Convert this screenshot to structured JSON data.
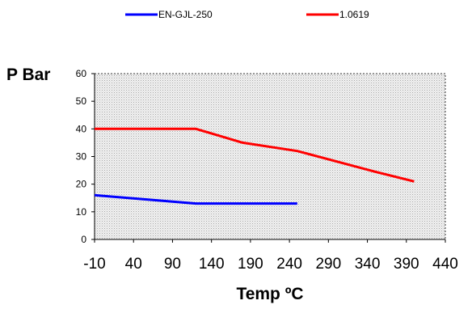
{
  "chart_data": {
    "type": "line",
    "xlabel": "Temp ºC",
    "ylabel": "P Bar",
    "xlim": [
      -10,
      440
    ],
    "ylim": [
      0,
      60
    ],
    "x_ticks": [
      -10,
      40,
      90,
      140,
      190,
      240,
      290,
      340,
      390,
      440
    ],
    "y_ticks": [
      0,
      10,
      20,
      30,
      40,
      50,
      60
    ],
    "grid": false,
    "legend_position": "top",
    "series": [
      {
        "name": "EN-GJL-250",
        "color": "#0000ff",
        "points": [
          [
            -10,
            16
          ],
          [
            120,
            13
          ],
          [
            250,
            13
          ]
        ]
      },
      {
        "name": "1.0619",
        "color": "#ff0000",
        "points": [
          [
            -10,
            40
          ],
          [
            120,
            40
          ],
          [
            180,
            35
          ],
          [
            250,
            32
          ],
          [
            350,
            24.5
          ],
          [
            400,
            21
          ]
        ]
      }
    ]
  }
}
